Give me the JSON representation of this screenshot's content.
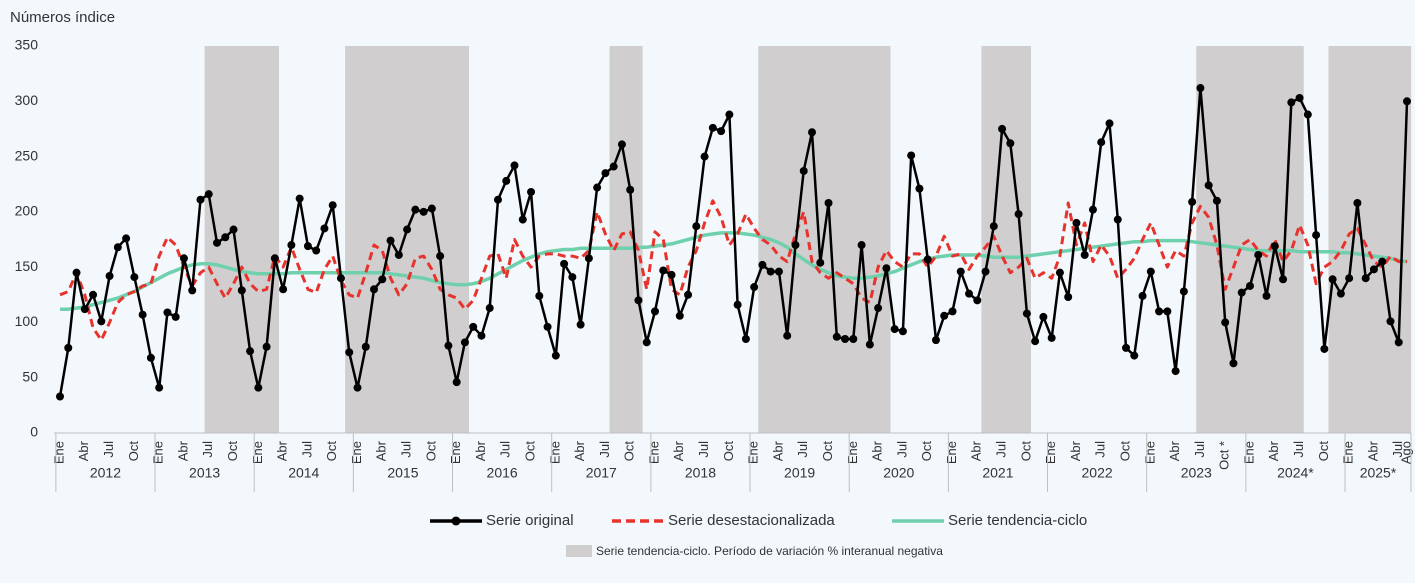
{
  "chart_data": {
    "type": "line",
    "ylabel": "Números índice",
    "ylim": [
      0,
      350
    ],
    "yticks": [
      0,
      50,
      100,
      150,
      200,
      250,
      300,
      350
    ],
    "categories": [
      "Ene",
      null,
      null,
      "Abr",
      null,
      null,
      "Jul",
      null,
      null,
      "Oct",
      null,
      null,
      "Ene",
      null,
      null,
      "Abr",
      null,
      null,
      "Jul",
      null,
      null,
      "Oct",
      null,
      null,
      "Ene",
      null,
      null,
      "Abr",
      null,
      null,
      "Jul",
      null,
      null,
      "Oct",
      null,
      null,
      "Ene",
      null,
      null,
      "Abr",
      null,
      null,
      "Jul",
      null,
      null,
      "Oct",
      null,
      null,
      "Ene",
      null,
      null,
      "Abr",
      null,
      null,
      "Jul",
      null,
      null,
      "Oct",
      null,
      null,
      "Ene",
      null,
      null,
      "Abr",
      null,
      null,
      "Jul",
      null,
      null,
      "Oct",
      null,
      null,
      "Ene",
      null,
      null,
      "Abr",
      null,
      null,
      "Jul",
      null,
      null,
      "Oct",
      null,
      null,
      "Ene",
      null,
      null,
      "Abr",
      null,
      null,
      "Jul",
      null,
      null,
      "Oct",
      null,
      null,
      "Ene",
      null,
      null,
      "Abr",
      null,
      null,
      "Jul",
      null,
      null,
      "Oct",
      null,
      null,
      "Ene",
      null,
      null,
      "Abr",
      null,
      null,
      "Jul",
      null,
      null,
      "Oct",
      null,
      null,
      "Ene",
      null,
      null,
      "Abr",
      null,
      null,
      "Jul",
      null,
      null,
      "Oct",
      null,
      null,
      "Ene",
      null,
      null,
      "Abr",
      null,
      null,
      "Jul",
      null,
      null,
      "Oct *",
      null,
      null,
      "Ene",
      null,
      null,
      "Abr",
      null,
      null,
      "Jul",
      null,
      null,
      "Oct",
      null,
      null,
      "Ene",
      null,
      null,
      "Abr",
      null,
      null,
      "Jul",
      "Ago"
    ],
    "years": [
      "2012",
      "2013",
      "2014",
      "2015",
      "2016",
      "2017",
      "2018",
      "2019",
      "2020",
      "2021",
      "2022",
      "2023",
      "2024*",
      "2025*"
    ],
    "series": [
      {
        "name": "Serie original",
        "color": "#000000",
        "markers": true,
        "values": [
          33,
          77,
          145,
          112,
          125,
          101,
          142,
          168,
          176,
          141,
          107,
          68,
          41,
          109,
          105,
          158,
          129,
          211,
          216,
          172,
          177,
          184,
          129,
          74,
          41,
          78,
          158,
          130,
          170,
          212,
          169,
          165,
          185,
          206,
          140,
          73,
          41,
          78,
          130,
          139,
          174,
          161,
          184,
          202,
          200,
          203,
          160,
          79,
          46,
          82,
          96,
          88,
          113,
          211,
          228,
          242,
          193,
          218,
          124,
          96,
          70,
          153,
          141,
          98,
          158,
          222,
          235,
          241,
          261,
          220,
          120,
          82,
          110,
          147,
          143,
          106,
          125,
          187,
          250,
          276,
          273,
          288,
          116,
          85,
          132,
          152,
          146,
          146,
          88,
          170,
          237,
          272,
          154,
          208,
          87,
          85,
          85,
          170,
          80,
          113,
          149,
          94,
          92,
          251,
          221,
          157,
          84,
          106,
          110,
          146,
          126,
          120,
          146,
          187,
          275,
          262,
          198,
          108,
          83,
          105,
          86,
          145,
          123,
          190,
          161,
          202,
          263,
          280,
          193,
          77,
          70,
          124,
          146,
          110,
          110,
          56,
          128,
          209,
          312,
          224,
          210,
          100,
          63,
          127,
          133,
          161,
          124,
          169,
          139,
          299,
          303,
          288,
          179,
          76,
          139,
          126,
          140,
          208,
          140,
          148,
          155,
          101,
          82,
          300
        ]
      },
      {
        "name": "Serie desestacionalizada",
        "color": "#e8322c",
        "dashed": true,
        "values": [
          125,
          128,
          145,
          125,
          95,
          84,
          100,
          118,
          125,
          128,
          133,
          135,
          160,
          177,
          170,
          150,
          133,
          145,
          150,
          135,
          122,
          135,
          150,
          135,
          128,
          130,
          160,
          150,
          168,
          148,
          130,
          127,
          148,
          160,
          138,
          125,
          122,
          145,
          170,
          165,
          140,
          125,
          135,
          158,
          160,
          148,
          130,
          125,
          122,
          112,
          120,
          140,
          160,
          162,
          140,
          175,
          160,
          150,
          160,
          162,
          162,
          160,
          160,
          158,
          165,
          200,
          180,
          165,
          180,
          182,
          165,
          130,
          182,
          175,
          130,
          125,
          150,
          165,
          190,
          210,
          195,
          170,
          180,
          198,
          185,
          175,
          170,
          160,
          155,
          180,
          200,
          155,
          145,
          140,
          145,
          140,
          135,
          122,
          118,
          150,
          165,
          155,
          150,
          162,
          162,
          150,
          160,
          178,
          160,
          162,
          148,
          160,
          168,
          178,
          160,
          145,
          150,
          158,
          140,
          145,
          140,
          160,
          208,
          170,
          190,
          155,
          170,
          160,
          140,
          148,
          158,
          175,
          190,
          170,
          150,
          165,
          160,
          190,
          205,
          195,
          170,
          130,
          150,
          170,
          175,
          165,
          160,
          175,
          155,
          165,
          188,
          170,
          135,
          150,
          155,
          165,
          180,
          185,
          170,
          155,
          150,
          160,
          155,
          155
        ]
      },
      {
        "name": "Serie tendencia-ciclo",
        "color": "#6fd0ad",
        "values": [
          112,
          112,
          113,
          114,
          116,
          118,
          120,
          122,
          125,
          128,
          132,
          136,
          140,
          144,
          147,
          150,
          152,
          153,
          153,
          152,
          150,
          148,
          146,
          145,
          144,
          144,
          144,
          144,
          145,
          145,
          145,
          145,
          145,
          145,
          145,
          145,
          145,
          145,
          145,
          145,
          144,
          143,
          142,
          141,
          140,
          138,
          136,
          135,
          134,
          134,
          135,
          137,
          140,
          144,
          148,
          152,
          156,
          159,
          162,
          164,
          165,
          166,
          166,
          167,
          167,
          167,
          167,
          167,
          167,
          167,
          168,
          168,
          169,
          170,
          171,
          173,
          175,
          177,
          179,
          180,
          181,
          181,
          181,
          180,
          179,
          177,
          175,
          172,
          168,
          162,
          157,
          152,
          148,
          145,
          142,
          141,
          140,
          140,
          141,
          142,
          144,
          146,
          149,
          152,
          155,
          157,
          159,
          160,
          161,
          161,
          161,
          161,
          160,
          159,
          159,
          159,
          159,
          160,
          161,
          162,
          163,
          164,
          165,
          166,
          167,
          168,
          169,
          170,
          171,
          172,
          173,
          173,
          174,
          174,
          174,
          174,
          174,
          173,
          172,
          171,
          170,
          169,
          168,
          167,
          166,
          165,
          165,
          165,
          165,
          165,
          164,
          164,
          164,
          164,
          164,
          163,
          163,
          162,
          161,
          160,
          159,
          158,
          156,
          155
        ]
      }
    ],
    "shaded_label": "Serie tendencia-ciclo. Período de variación % interanual negativa",
    "shaded_color": "#d0cece",
    "shaded_ranges": [
      [
        18,
        26
      ],
      [
        35,
        49
      ],
      [
        67,
        70
      ],
      [
        85,
        100
      ],
      [
        112,
        117
      ],
      [
        138,
        150
      ],
      [
        154,
        163
      ]
    ]
  }
}
